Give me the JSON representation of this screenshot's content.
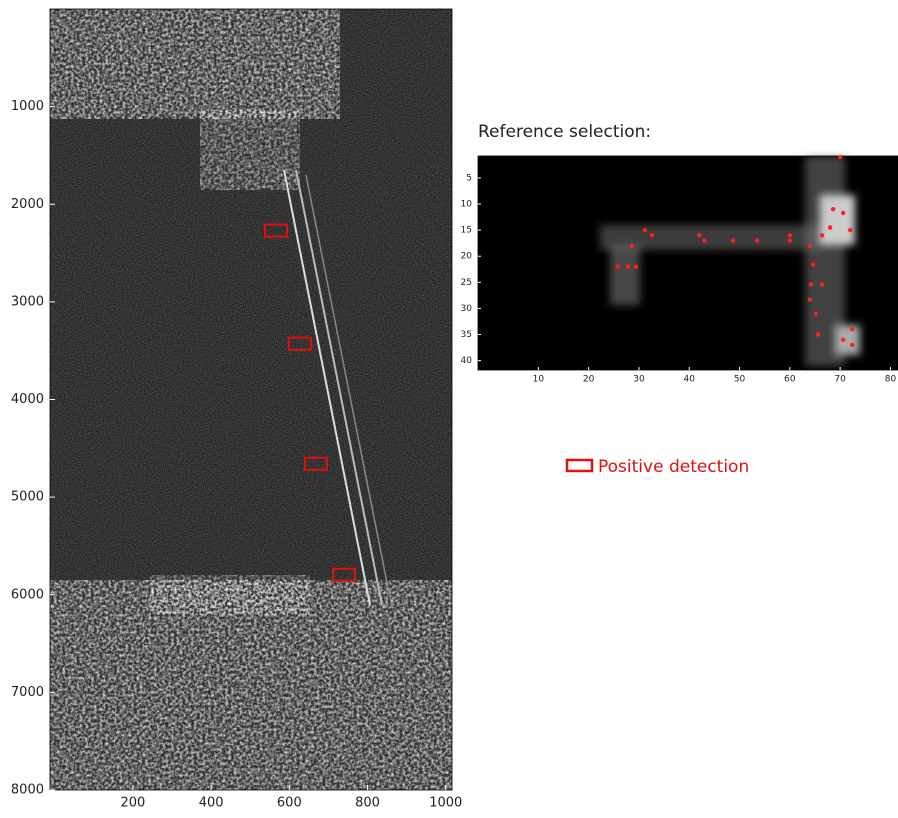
{
  "chart_data": [
    {
      "type": "detection",
      "xlim": [
        -12,
        1016
      ],
      "ylim": [
        0,
        8000
      ],
      "xticks": [
        200,
        400,
        600,
        800,
        1000
      ],
      "yticks": [
        1000,
        2000,
        3000,
        4000,
        5000,
        6000,
        7000,
        8000
      ],
      "series": [
        {
          "name": "Positive detection",
          "color": "#e01010",
          "x": [
            566,
            627,
            668,
            740
          ],
          "y": [
            2270,
            3428,
            4658,
            5795
          ]
        }
      ]
    },
    {
      "type": "scatter",
      "title": "Reference selection:",
      "xlim": [
        -2,
        81.5
      ],
      "ylim": [
        0.8,
        41.8
      ],
      "xticks": [
        10,
        20,
        30,
        40,
        50,
        60,
        70,
        80
      ],
      "yticks": [
        5,
        10,
        15,
        20,
        25,
        30,
        35,
        40
      ],
      "series": [
        {
          "color": "#ff2020",
          "x": [
            70,
            68.6,
            70.6,
            72,
            68,
            66.4,
            64,
            60,
            60,
            53.5,
            48.7,
            42,
            43,
            32.6,
            31.2,
            28.6,
            25.8,
            27.8,
            29.4,
            64.6,
            64.2,
            66.4,
            64,
            65.2,
            65.6,
            70.6,
            72.4,
            72.4
          ],
          "y": [
            1,
            11,
            11.7,
            15,
            14.5,
            16,
            18,
            17,
            16,
            17,
            17,
            16,
            17,
            16,
            15,
            18,
            22,
            22,
            22,
            21.6,
            25.4,
            25.4,
            28.3,
            31,
            35,
            36,
            37,
            34
          ]
        }
      ]
    }
  ]
}
